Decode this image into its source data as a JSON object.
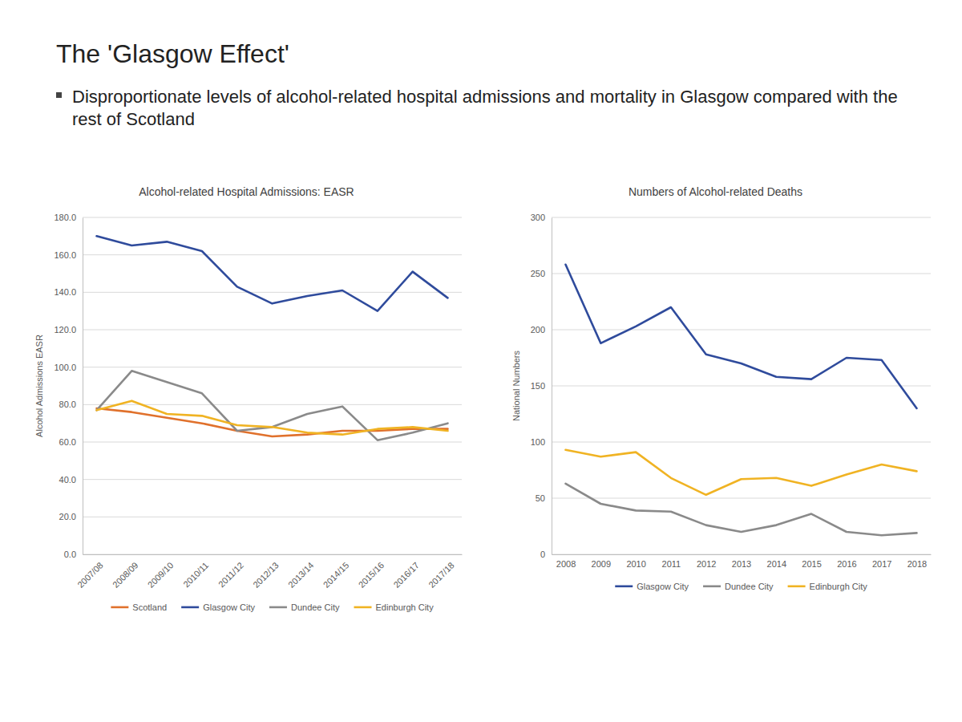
{
  "slide": {
    "title": "The 'Glasgow Effect'",
    "bullets": [
      "Disproportionate levels of alcohol-related hospital admissions and mortality in Glasgow compared with the rest of Scotland"
    ]
  },
  "chart_data": [
    {
      "type": "line",
      "title": "Alcohol-related Hospital Admissions: EASR",
      "y_label": "Alcohol Admissions EASR",
      "categories": [
        "2007/08",
        "2008/09",
        "2009/10",
        "2010/11",
        "2011/12",
        "2012/13",
        "2013/14",
        "2014/15",
        "2015/16",
        "2016/17",
        "2017/18"
      ],
      "series": [
        {
          "name": "Scotland",
          "color": "#e0712c",
          "values": [
            78,
            76,
            73,
            70,
            66,
            63,
            64,
            66,
            66,
            67,
            67
          ]
        },
        {
          "name": "Glasgow City",
          "color": "#2f4b9c",
          "values": [
            170,
            165,
            167,
            162,
            143,
            134,
            138,
            141,
            130,
            151,
            137
          ]
        },
        {
          "name": "Dundee City",
          "color": "#8a8a8a",
          "values": [
            77,
            98,
            92,
            86,
            66,
            68,
            75,
            79,
            61,
            65,
            70
          ]
        },
        {
          "name": "Edinburgh City",
          "color": "#f0b323",
          "values": [
            77,
            82,
            75,
            74,
            69,
            68,
            65,
            64,
            67,
            68,
            66
          ]
        }
      ],
      "ylim": [
        0,
        180
      ],
      "yticks": [
        {
          "value": 0,
          "label": "0.0"
        },
        {
          "value": 20,
          "label": "20.0"
        },
        {
          "value": 40,
          "label": "40.0"
        },
        {
          "value": 60,
          "label": "60.0"
        },
        {
          "value": 80,
          "label": "80.0"
        },
        {
          "value": 100,
          "label": "100.0"
        },
        {
          "value": 120,
          "label": "120.0"
        },
        {
          "value": 140,
          "label": "140.0"
        },
        {
          "value": 160,
          "label": "160.0"
        },
        {
          "value": 180,
          "label": "180.0"
        }
      ],
      "grid": true,
      "legend": "bottom"
    },
    {
      "type": "line",
      "title": "Numbers of Alcohol-related Deaths",
      "y_label": "National Numbers",
      "categories": [
        "2008",
        "2009",
        "2010",
        "2011",
        "2012",
        "2013",
        "2014",
        "2015",
        "2016",
        "2017",
        "2018"
      ],
      "series": [
        {
          "name": "Glasgow City",
          "color": "#2f4b9c",
          "values": [
            258,
            188,
            203,
            220,
            178,
            170,
            158,
            156,
            175,
            173,
            130
          ]
        },
        {
          "name": "Dundee City",
          "color": "#8a8a8a",
          "values": [
            63,
            45,
            39,
            38,
            26,
            20,
            26,
            36,
            20,
            17,
            19
          ]
        },
        {
          "name": "Edinburgh City",
          "color": "#f0b323",
          "values": [
            93,
            87,
            91,
            68,
            53,
            67,
            68,
            61,
            71,
            80,
            74
          ]
        }
      ],
      "ylim": [
        0,
        300
      ],
      "yticks": [
        0,
        50,
        100,
        150,
        200,
        250,
        300
      ],
      "grid": true,
      "legend": "bottom"
    }
  ]
}
